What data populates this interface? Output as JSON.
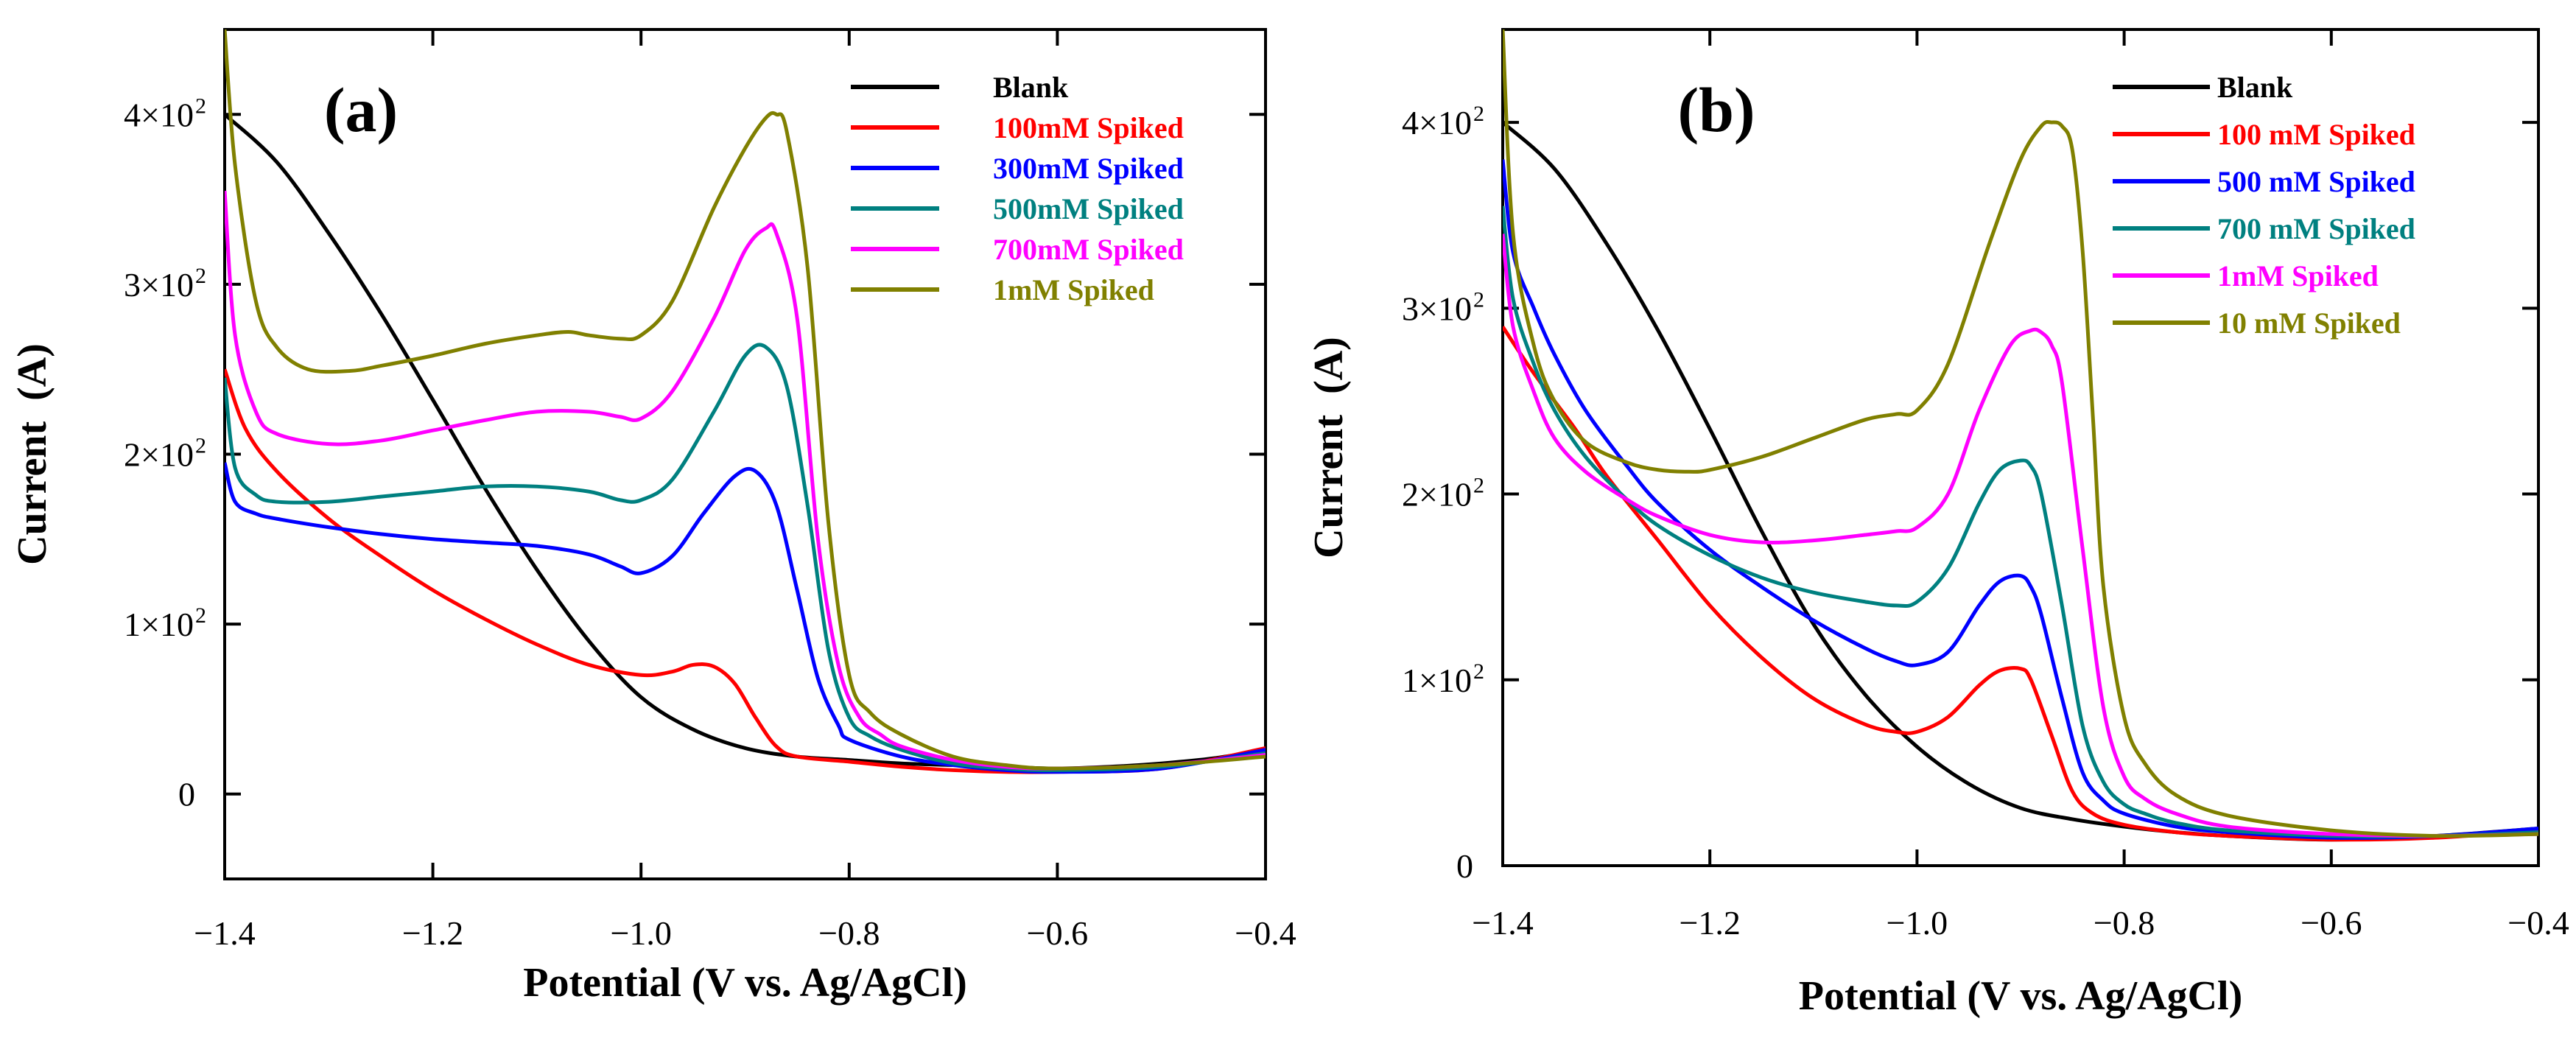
{
  "figure": {
    "colors": {
      "blank": "#000000",
      "red": "#ff0000",
      "blue": "#0000ff",
      "teal": "#008080",
      "magenta": "#ff00ff",
      "olive": "#808000"
    }
  },
  "chart_data": [
    {
      "type": "line",
      "panel_label": "(a)",
      "xlabel": "Potential (V vs. Ag/AgCl)",
      "ylabel": "Current  (A)",
      "xlim": [
        -1.4,
        -0.4
      ],
      "ylim": [
        -50,
        450
      ],
      "x_ticks": [
        -1.4,
        -1.2,
        -1.0,
        -0.8,
        -0.6,
        -0.4
      ],
      "x_tick_labels": [
        "-1.4",
        "-1.2",
        "-1.0",
        "-0.8",
        "-0.6",
        "-0.4"
      ],
      "y_ticks": [
        0,
        100,
        200,
        300,
        400
      ],
      "y_tick_labels": [
        {
          "text": "0",
          "exp": ""
        },
        {
          "text": "1×10",
          "exp": "2"
        },
        {
          "text": "2×10",
          "exp": "2"
        },
        {
          "text": "3×10",
          "exp": "2"
        },
        {
          "text": "4×10",
          "exp": "2"
        }
      ],
      "legend_position": "top-right",
      "series": [
        {
          "name": "Blank",
          "color": "#000000",
          "x": [
            -1.4,
            -1.35,
            -1.3,
            -1.25,
            -1.2,
            -1.15,
            -1.1,
            -1.05,
            -1.0,
            -0.95,
            -0.9,
            -0.85,
            -0.8,
            -0.75,
            -0.7,
            -0.65,
            -0.6,
            -0.55,
            -0.5,
            -0.45,
            -0.4
          ],
          "y": [
            400,
            372,
            330,
            283,
            232,
            180,
            132,
            90,
            57,
            38,
            27,
            22,
            20,
            18,
            17,
            16,
            15,
            16,
            18,
            21,
            26
          ]
        },
        {
          "name": "100mM Spiked",
          "color": "#ff0000",
          "x": [
            -1.4,
            -1.38,
            -1.35,
            -1.3,
            -1.25,
            -1.2,
            -1.15,
            -1.1,
            -1.05,
            -1.0,
            -0.97,
            -0.95,
            -0.93,
            -0.91,
            -0.89,
            -0.87,
            -0.85,
            -0.8,
            -0.75,
            -0.7,
            -0.65,
            -0.6,
            -0.5,
            -0.4
          ],
          "y": [
            250,
            215,
            190,
            162,
            140,
            120,
            103,
            88,
            76,
            70,
            72,
            76,
            75,
            65,
            45,
            28,
            22,
            19,
            16,
            14,
            13,
            13,
            15,
            27
          ]
        },
        {
          "name": "300mM Spiked",
          "color": "#0000ff",
          "x": [
            -1.4,
            -1.39,
            -1.37,
            -1.35,
            -1.3,
            -1.25,
            -1.2,
            -1.15,
            -1.1,
            -1.05,
            -1.02,
            -1.0,
            -0.97,
            -0.94,
            -0.91,
            -0.89,
            -0.87,
            -0.85,
            -0.83,
            -0.81,
            -0.8,
            -0.75,
            -0.7,
            -0.65,
            -0.6,
            -0.5,
            -0.4
          ],
          "y": [
            195,
            172,
            165,
            162,
            157,
            153,
            150,
            148,
            146,
            141,
            134,
            130,
            140,
            165,
            187,
            190,
            170,
            120,
            68,
            40,
            32,
            22,
            17,
            14,
            13,
            15,
            26
          ]
        },
        {
          "name": "500mM Spiked",
          "color": "#008080",
          "x": [
            -1.4,
            -1.39,
            -1.37,
            -1.35,
            -1.3,
            -1.25,
            -1.2,
            -1.15,
            -1.1,
            -1.05,
            -1.02,
            -1.0,
            -0.97,
            -0.93,
            -0.9,
            -0.88,
            -0.86,
            -0.84,
            -0.82,
            -0.8,
            -0.78,
            -0.75,
            -0.7,
            -0.65,
            -0.6,
            -0.5,
            -0.4
          ],
          "y": [
            245,
            192,
            176,
            172,
            172,
            175,
            178,
            181,
            181,
            178,
            173,
            173,
            185,
            225,
            258,
            263,
            240,
            170,
            85,
            45,
            34,
            26,
            18,
            15,
            14,
            16,
            24
          ]
        },
        {
          "name": "700mM Spiked",
          "color": "#ff00ff",
          "x": [
            -1.4,
            -1.39,
            -1.37,
            -1.35,
            -1.3,
            -1.25,
            -1.2,
            -1.15,
            -1.1,
            -1.05,
            -1.02,
            -1.0,
            -0.97,
            -0.93,
            -0.9,
            -0.88,
            -0.87,
            -0.85,
            -0.83,
            -0.81,
            -0.79,
            -0.77,
            -0.75,
            -0.7,
            -0.65,
            -0.6,
            -0.5,
            -0.4
          ],
          "y": [
            355,
            270,
            225,
            212,
            206,
            208,
            214,
            220,
            225,
            225,
            222,
            221,
            237,
            280,
            320,
            333,
            330,
            280,
            150,
            75,
            45,
            35,
            28,
            20,
            16,
            15,
            17,
            23
          ]
        },
        {
          "name": "1mM Spiked",
          "color": "#808000",
          "x": [
            -1.4,
            -1.39,
            -1.37,
            -1.35,
            -1.32,
            -1.28,
            -1.25,
            -1.2,
            -1.15,
            -1.1,
            -1.07,
            -1.05,
            -1.02,
            -1.0,
            -0.97,
            -0.93,
            -0.9,
            -0.88,
            -0.87,
            -0.86,
            -0.84,
            -0.82,
            -0.8,
            -0.78,
            -0.75,
            -0.7,
            -0.65,
            -0.6,
            -0.5,
            -0.4
          ],
          "y": [
            450,
            370,
            290,
            263,
            250,
            249,
            252,
            258,
            265,
            270,
            272,
            270,
            268,
            270,
            290,
            345,
            380,
            398,
            400,
            390,
            310,
            160,
            70,
            48,
            35,
            22,
            17,
            15,
            17,
            22
          ]
        }
      ]
    },
    {
      "type": "line",
      "panel_label": "(b)",
      "xlabel": "Potential (V vs. Ag/AgCl)",
      "ylabel": "Current  (A)",
      "xlim": [
        -1.4,
        -0.4
      ],
      "ylim": [
        0,
        450
      ],
      "x_ticks": [
        -1.4,
        -1.2,
        -1.0,
        -0.8,
        -0.6,
        -0.4
      ],
      "x_tick_labels": [
        "-1.4",
        "-1.2",
        "-1.0",
        "-0.8",
        "-0.6",
        "-0.4"
      ],
      "y_ticks": [
        0,
        100,
        200,
        300,
        400
      ],
      "y_tick_labels": [
        {
          "text": "0",
          "exp": ""
        },
        {
          "text": "1×10",
          "exp": "2"
        },
        {
          "text": "2×10",
          "exp": "2"
        },
        {
          "text": "3×10",
          "exp": "2"
        },
        {
          "text": "4×10",
          "exp": "2"
        }
      ],
      "legend_position": "top-right",
      "series": [
        {
          "name": "Blank",
          "color": "#000000",
          "x": [
            -1.4,
            -1.35,
            -1.3,
            -1.25,
            -1.2,
            -1.15,
            -1.1,
            -1.05,
            -1.0,
            -0.95,
            -0.9,
            -0.85,
            -0.8,
            -0.75,
            -0.7,
            -0.6,
            -0.5,
            -0.4
          ],
          "y": [
            400,
            375,
            335,
            288,
            235,
            180,
            130,
            92,
            64,
            44,
            31,
            25,
            21,
            18,
            16,
            14,
            16,
            20
          ]
        },
        {
          "name": "100 mM Spiked",
          "color": "#ff0000",
          "x": [
            -1.4,
            -1.37,
            -1.33,
            -1.3,
            -1.25,
            -1.2,
            -1.15,
            -1.1,
            -1.05,
            -1.02,
            -1.0,
            -0.97,
            -0.94,
            -0.92,
            -0.9,
            -0.89,
            -0.87,
            -0.85,
            -0.83,
            -0.8,
            -0.75,
            -0.7,
            -0.6,
            -0.5,
            -0.4
          ],
          "y": [
            290,
            265,
            235,
            210,
            175,
            140,
            112,
            90,
            76,
            72,
            72,
            80,
            97,
            105,
            106,
            100,
            70,
            40,
            28,
            22,
            18,
            16,
            14,
            15,
            19
          ]
        },
        {
          "name": "500 mM Spiked",
          "color": "#0000ff",
          "x": [
            -1.4,
            -1.39,
            -1.37,
            -1.35,
            -1.32,
            -1.28,
            -1.25,
            -1.2,
            -1.15,
            -1.1,
            -1.05,
            -1.02,
            -1.0,
            -0.97,
            -0.94,
            -0.92,
            -0.9,
            -0.89,
            -0.88,
            -0.86,
            -0.84,
            -0.82,
            -0.8,
            -0.75,
            -0.7,
            -0.6,
            -0.5,
            -0.4
          ],
          "y": [
            380,
            330,
            300,
            275,
            245,
            215,
            195,
            170,
            150,
            132,
            117,
            110,
            108,
            115,
            140,
            153,
            156,
            150,
            135,
            90,
            50,
            35,
            28,
            21,
            18,
            15,
            16,
            20
          ]
        },
        {
          "name": "700 mM Spiked",
          "color": "#008080",
          "x": [
            -1.4,
            -1.39,
            -1.37,
            -1.35,
            -1.32,
            -1.28,
            -1.25,
            -1.2,
            -1.15,
            -1.1,
            -1.05,
            -1.02,
            -1.0,
            -0.97,
            -0.94,
            -0.92,
            -0.9,
            -0.89,
            -0.88,
            -0.86,
            -0.84,
            -0.82,
            -0.8,
            -0.78,
            -0.75,
            -0.7,
            -0.6,
            -0.5,
            -0.4
          ],
          "y": [
            355,
            305,
            270,
            245,
            220,
            197,
            183,
            167,
            155,
            147,
            142,
            140,
            142,
            160,
            195,
            213,
            218,
            215,
            200,
            140,
            75,
            45,
            33,
            28,
            23,
            19,
            16,
            16,
            18
          ]
        },
        {
          "name": "1mM Spiked",
          "color": "#ff00ff",
          "x": [
            -1.4,
            -1.39,
            -1.37,
            -1.35,
            -1.32,
            -1.28,
            -1.25,
            -1.2,
            -1.15,
            -1.1,
            -1.05,
            -1.02,
            -1.0,
            -0.97,
            -0.94,
            -0.91,
            -0.89,
            -0.88,
            -0.87,
            -0.86,
            -0.84,
            -0.82,
            -0.8,
            -0.78,
            -0.75,
            -0.7,
            -0.6,
            -0.5,
            -0.4
          ],
          "y": [
            340,
            290,
            255,
            230,
            212,
            197,
            188,
            178,
            174,
            175,
            178,
            180,
            182,
            200,
            245,
            280,
            288,
            287,
            280,
            260,
            170,
            85,
            48,
            36,
            28,
            21,
            17,
            16,
            17
          ]
        },
        {
          "name": "10 mM Spiked",
          "color": "#808000",
          "x": [
            -1.4,
            -1.39,
            -1.37,
            -1.35,
            -1.32,
            -1.28,
            -1.25,
            -1.22,
            -1.2,
            -1.15,
            -1.1,
            -1.05,
            -1.02,
            -1.0,
            -0.97,
            -0.93,
            -0.9,
            -0.88,
            -0.87,
            -0.86,
            -0.85,
            -0.84,
            -0.83,
            -0.82,
            -0.8,
            -0.78,
            -0.75,
            -0.7,
            -0.6,
            -0.5,
            -0.4
          ],
          "y": [
            450,
            340,
            280,
            250,
            228,
            217,
            213,
            212,
            213,
            220,
            230,
            240,
            243,
            245,
            270,
            335,
            380,
            398,
            400,
            398,
            385,
            330,
            240,
            150,
            80,
            55,
            38,
            27,
            19,
            16,
            17
          ]
        }
      ]
    }
  ]
}
